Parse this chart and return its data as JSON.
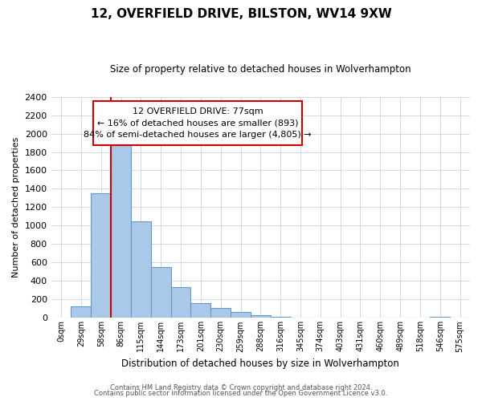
{
  "title": "12, OVERFIELD DRIVE, BILSTON, WV14 9XW",
  "subtitle": "Size of property relative to detached houses in Wolverhampton",
  "xlabel": "Distribution of detached houses by size in Wolverhampton",
  "ylabel": "Number of detached properties",
  "footer_lines": [
    "Contains HM Land Registry data © Crown copyright and database right 2024.",
    "Contains public sector information licensed under the Open Government Licence v3.0."
  ],
  "bar_labels": [
    "0sqm",
    "29sqm",
    "58sqm",
    "86sqm",
    "115sqm",
    "144sqm",
    "173sqm",
    "201sqm",
    "230sqm",
    "259sqm",
    "288sqm",
    "316sqm",
    "345sqm",
    "374sqm",
    "403sqm",
    "431sqm",
    "460sqm",
    "489sqm",
    "518sqm",
    "546sqm",
    "575sqm"
  ],
  "bar_values": [
    0,
    125,
    1350,
    1890,
    1050,
    550,
    335,
    160,
    105,
    60,
    30,
    10,
    5,
    0,
    0,
    0,
    0,
    0,
    0,
    10,
    0
  ],
  "bar_color": "#aac8e8",
  "bar_edge_color": "#6699cc",
  "ylim": [
    0,
    2400
  ],
  "yticks": [
    0,
    200,
    400,
    600,
    800,
    1000,
    1200,
    1400,
    1600,
    1800,
    2000,
    2200,
    2400
  ],
  "vline_x": 2.5,
  "vline_color": "#cc0000",
  "annotation_line1": "12 OVERFIELD DRIVE: 77sqm",
  "annotation_line2": "← 16% of detached houses are smaller (893)",
  "annotation_line3": "84% of semi-detached houses are larger (4,805) →",
  "annotation_box_edgecolor": "#cc0000",
  "annotation_box_facecolor": "#ffffff",
  "background_color": "#ffffff",
  "grid_color": "#d0d8e8"
}
